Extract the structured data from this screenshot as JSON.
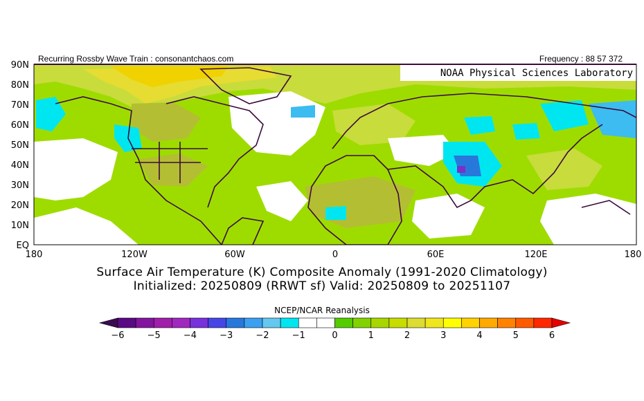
{
  "header": {
    "left": "Recurring Rossby Wave Train : consonantchaos.com",
    "right": "Frequency : 88 57 372",
    "watermark": "NOAA Physical Sciences Laboratory"
  },
  "map": {
    "lat_labels": [
      "90N",
      "80N",
      "70N",
      "60N",
      "50N",
      "40N",
      "30N",
      "20N",
      "10N",
      "EQ"
    ],
    "lon_labels": [
      "180",
      "120W",
      "60W",
      "0",
      "60E",
      "120E",
      "180"
    ],
    "colors": {
      "white": "#ffffff",
      "light_green": "#9edc00",
      "green": "#55cc00",
      "yellow_green": "#c8dc3c",
      "olive": "#b4be32",
      "yellow": "#e6dc32",
      "gold": "#f0d200",
      "cyan": "#00e6f0",
      "sky": "#3cbcf0",
      "blue": "#2878dc",
      "purple": "#7832c8",
      "coast": "#3c0a3c"
    }
  },
  "caption": {
    "line1": "Surface Air Temperature (K) Composite Anomaly (1991-2020 Climatology)",
    "line2": "Initialized: 20250809 (RRWT sf) Valid: 20250809 to 20251107"
  },
  "colorbar": {
    "title": "NCEP/NCAR Reanalysis",
    "tick_labels": [
      "-6",
      "-5",
      "-4",
      "-3",
      "-2",
      "-1",
      "0",
      "1",
      "2",
      "3",
      "4",
      "5",
      "6"
    ],
    "colors": [
      "#3c0a50",
      "#5a0a82",
      "#8214a0",
      "#a01eaa",
      "#a028be",
      "#7832dc",
      "#4646e6",
      "#2878dc",
      "#3ca0f0",
      "#64c8f0",
      "#00e6f0",
      "#ffffff",
      "#ffffff",
      "#55cc00",
      "#82d200",
      "#a8d700",
      "#c8dc00",
      "#dcdc32",
      "#f0e61e",
      "#ffff00",
      "#ffd200",
      "#ffaa00",
      "#ff8200",
      "#ff5a00",
      "#ff2800",
      "#e60000"
    ]
  }
}
